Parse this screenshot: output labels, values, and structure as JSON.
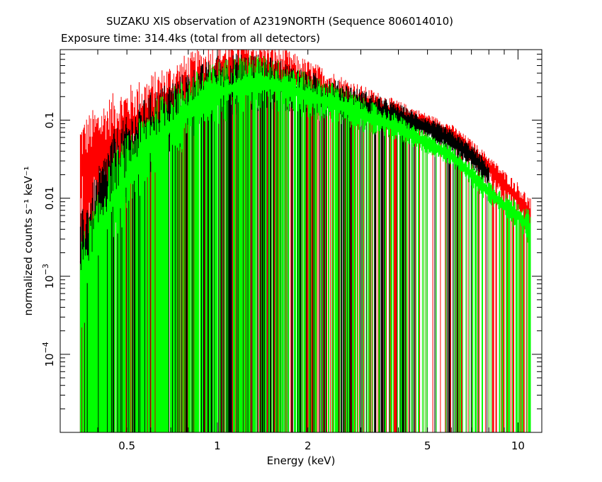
{
  "chart_data": {
    "type": "line",
    "title": "SUZAKU XIS observation of A2319NORTH (Sequence 806014010)",
    "subtitle": "Exposure time: 314.4ks (total from all detectors)",
    "xlabel": "Energy (keV)",
    "ylabel": "normalized counts s⁻¹ keV⁻¹",
    "xscale": "log",
    "yscale": "log",
    "xlim": [
      0.3,
      12
    ],
    "ylim": [
      1e-05,
      0.8
    ],
    "grid": false,
    "x_ticks": [
      {
        "value": 0.5,
        "label": "0.5"
      },
      {
        "value": 1,
        "label": "1"
      },
      {
        "value": 2,
        "label": "2"
      },
      {
        "value": 5,
        "label": "5"
      },
      {
        "value": 10,
        "label": "10"
      }
    ],
    "y_ticks": [
      {
        "value": 0.1,
        "label": "0.1"
      },
      {
        "value": 0.01,
        "label": "0.01"
      },
      {
        "value": 0.001,
        "mantissa": "10",
        "exponent": "−3"
      },
      {
        "value": 0.0001,
        "mantissa": "10",
        "exponent": "−4"
      }
    ],
    "series": [
      {
        "color": "#ff0000",
        "x": [
          0.35,
          0.45,
          0.6,
          0.8,
          1.0,
          1.2,
          1.4,
          1.7,
          2.0,
          2.5,
          3.0,
          4.0,
          5.0,
          6.0,
          7.0,
          8.0,
          9.0,
          10.0,
          11.0
        ],
        "y": [
          0.025,
          0.06,
          0.12,
          0.25,
          0.38,
          0.45,
          0.45,
          0.38,
          0.3,
          0.22,
          0.17,
          0.12,
          0.09,
          0.065,
          0.04,
          0.025,
          0.015,
          0.01,
          0.006
        ]
      },
      {
        "color": "#000000",
        "x": [
          0.35,
          0.45,
          0.6,
          0.8,
          1.0,
          1.2,
          1.4,
          1.7,
          2.0,
          2.5,
          3.0,
          4.0,
          5.0,
          6.0,
          7.0,
          8.0
        ],
        "y": [
          0.0015,
          0.02,
          0.07,
          0.15,
          0.25,
          0.3,
          0.3,
          0.26,
          0.22,
          0.18,
          0.15,
          0.11,
          0.08,
          0.055,
          0.035,
          0.02
        ]
      },
      {
        "color": "#00ff00",
        "x": [
          0.35,
          0.45,
          0.6,
          0.8,
          1.0,
          1.2,
          1.4,
          1.7,
          2.0,
          2.5,
          3.0,
          4.0,
          5.0,
          6.0,
          7.0,
          8.0,
          9.0,
          10.0,
          11.0
        ],
        "y": [
          0.0007,
          0.01,
          0.05,
          0.13,
          0.22,
          0.28,
          0.3,
          0.26,
          0.2,
          0.16,
          0.12,
          0.08,
          0.05,
          0.035,
          0.02,
          0.012,
          0.008,
          0.006,
          0.004
        ]
      }
    ]
  }
}
